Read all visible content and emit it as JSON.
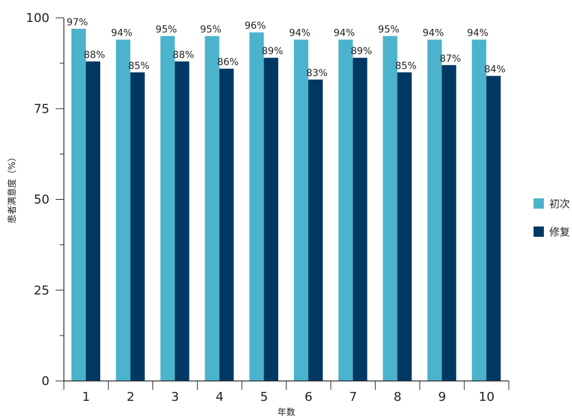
{
  "chart_data": {
    "type": "bar",
    "title": "",
    "xlabel": "年数",
    "ylabel": "患者满意度（%）",
    "ylim": [
      0,
      100
    ],
    "yticks": [
      0,
      25,
      50,
      75,
      100
    ],
    "categories": [
      "1",
      "2",
      "3",
      "4",
      "5",
      "6",
      "7",
      "8",
      "9",
      "10"
    ],
    "series": [
      {
        "name": "初次",
        "color": "#4bb3cc",
        "values": [
          97,
          94,
          95,
          95,
          96,
          94,
          94,
          95,
          94,
          94
        ],
        "labels": [
          "97%",
          "94%",
          "95%",
          "95%",
          "96%",
          "94%",
          "94%",
          "95%",
          "94%",
          "94%"
        ]
      },
      {
        "name": "修复",
        "color": "#003863",
        "values": [
          88,
          85,
          88,
          86,
          89,
          83,
          89,
          85,
          87,
          84
        ],
        "labels": [
          "88%",
          "85%",
          "88%",
          "86%",
          "89%",
          "83%",
          "89%",
          "85%",
          "87%",
          "84%"
        ]
      }
    ],
    "grid": false,
    "legend": "right"
  }
}
